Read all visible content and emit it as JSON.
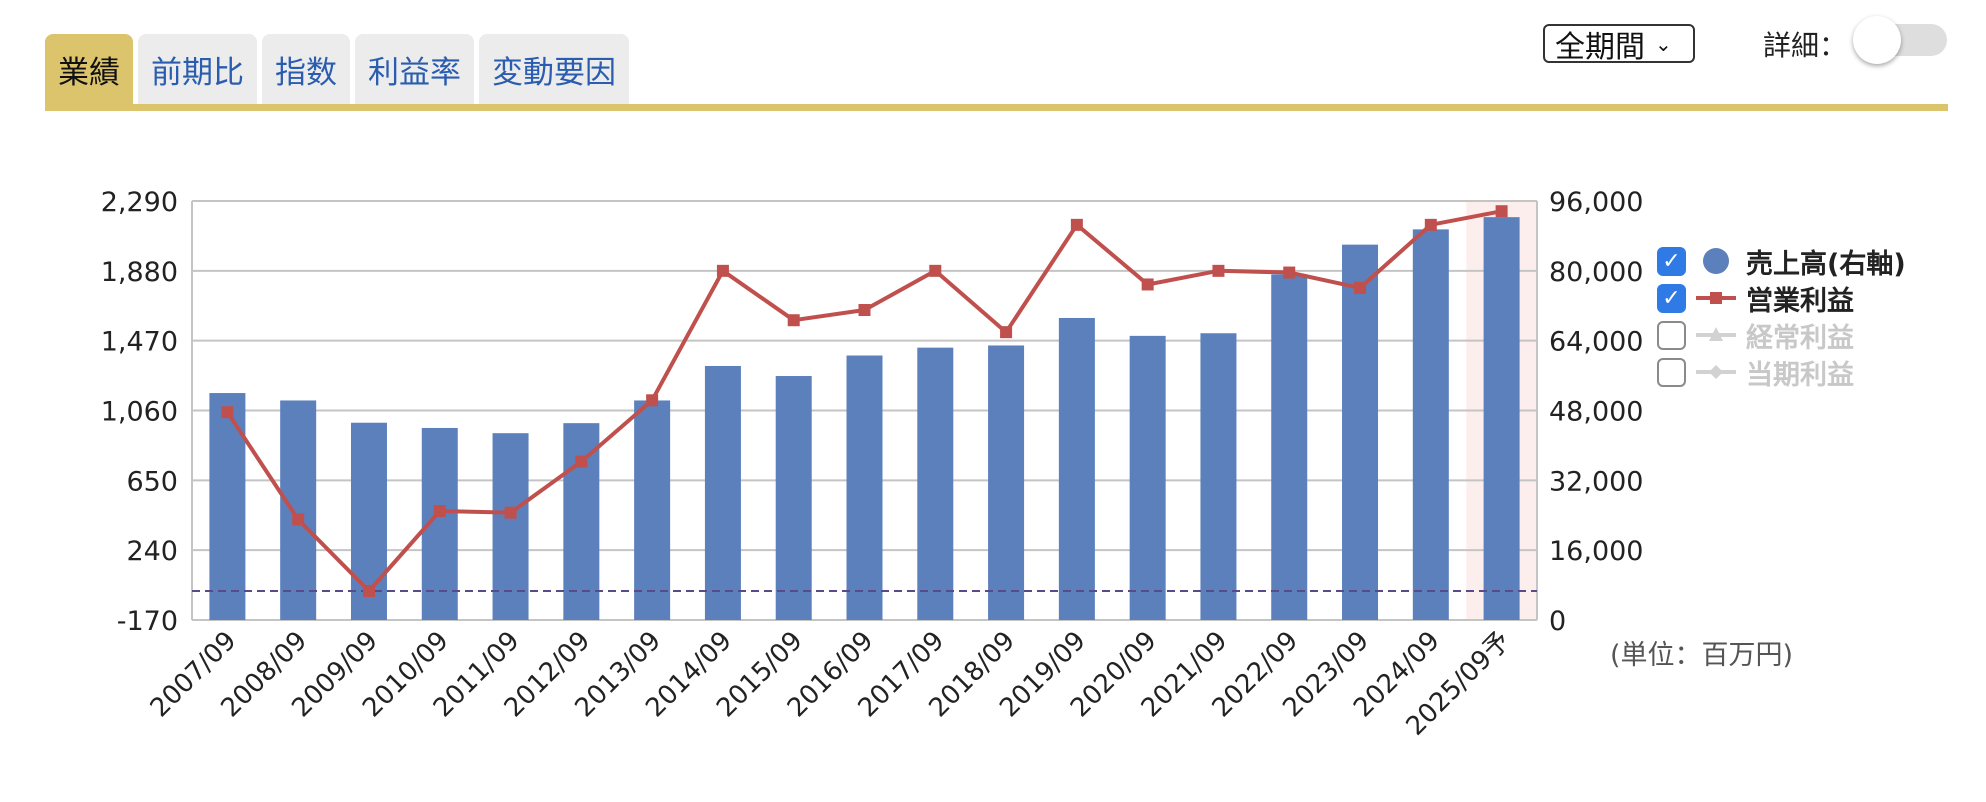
{
  "tabs": [
    {
      "label": "業績",
      "active": true
    },
    {
      "label": "前期比",
      "active": false
    },
    {
      "label": "指数",
      "active": false
    },
    {
      "label": "利益率",
      "active": false
    },
    {
      "label": "変動要因",
      "active": false
    }
  ],
  "period_select": {
    "value": "全期間",
    "chevron": "chevron-down-icon"
  },
  "detail_toggle": {
    "label": "詳細：",
    "on": false
  },
  "unit_note": "(単位：百万円)",
  "colors": {
    "accent": "#dcc46c",
    "bar": "#5b80bc",
    "line": "#c0504d",
    "forecast_bg": "#fdeeee",
    "zero_line": "#5b4a8a",
    "checkbox": "#2f7ae5"
  },
  "legend": [
    {
      "label": "売上高(右軸)",
      "checked": true,
      "symbol": "circle",
      "active": true
    },
    {
      "label": "営業利益",
      "checked": true,
      "symbol": "line-square",
      "active": true
    },
    {
      "label": "経常利益",
      "checked": false,
      "symbol": "line-triangle",
      "active": false
    },
    {
      "label": "当期利益",
      "checked": false,
      "symbol": "line-diamond",
      "active": false
    }
  ],
  "chart_data": {
    "type": "bar",
    "categories": [
      "2007/09",
      "2008/09",
      "2009/09",
      "2010/09",
      "2011/09",
      "2012/09",
      "2013/09",
      "2014/09",
      "2015/09",
      "2016/09",
      "2017/09",
      "2018/09",
      "2019/09",
      "2020/09",
      "2021/09",
      "2022/09",
      "2023/09",
      "2024/09",
      "2025/09予"
    ],
    "forecast_category": "2025/09予",
    "left_axis": {
      "ticks": [
        "2,290",
        "1,880",
        "1,470",
        "1,060",
        "650",
        "240",
        "-170"
      ],
      "ylim": [
        -170,
        2290
      ]
    },
    "right_axis": {
      "ticks": [
        "96,000",
        "80,000",
        "64,000",
        "48,000",
        "32,000",
        "16,000",
        "0"
      ],
      "ylim": [
        0,
        96000
      ]
    },
    "grid": true,
    "legend_position": "right",
    "series": [
      {
        "name": "売上高(右軸)",
        "type": "bar",
        "axis": "right",
        "values": [
          52000,
          50300,
          45200,
          44000,
          42800,
          45100,
          50300,
          58200,
          55900,
          60600,
          62400,
          62900,
          69200,
          65100,
          65700,
          79200,
          86000,
          89500,
          92300
        ]
      },
      {
        "name": "営業利益",
        "type": "line",
        "axis": "left",
        "values": [
          1050,
          420,
          0,
          470,
          460,
          760,
          1120,
          1880,
          1590,
          1650,
          1880,
          1520,
          2150,
          1800,
          1880,
          1870,
          1780,
          2150,
          2230
        ]
      }
    ]
  }
}
